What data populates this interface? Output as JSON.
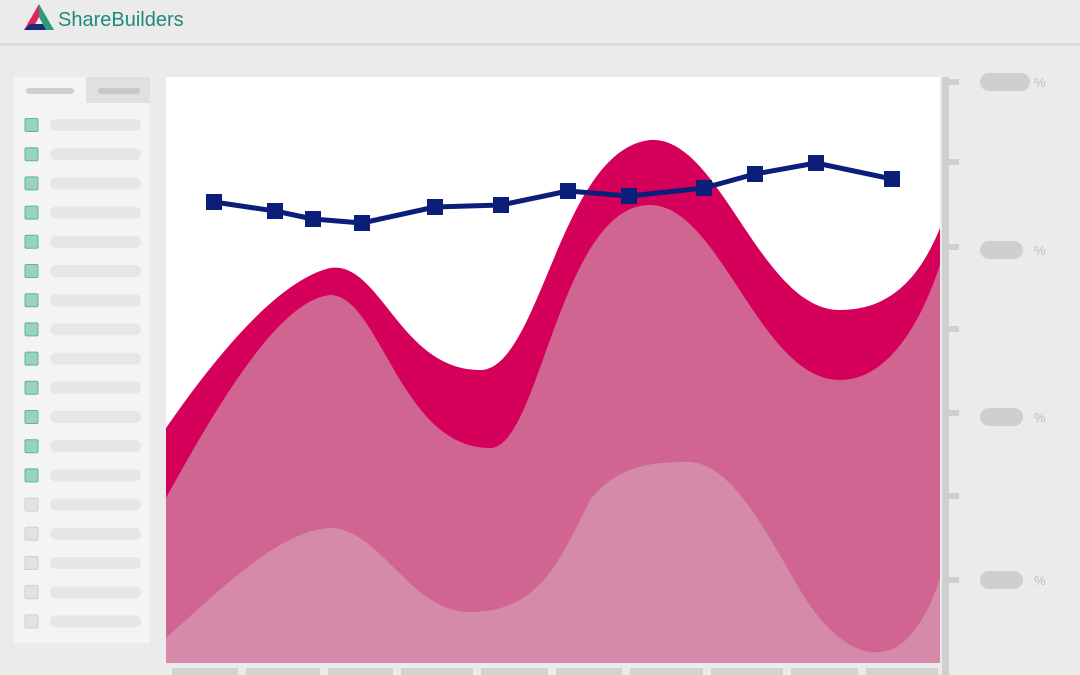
{
  "header": {
    "brand": "ShareBuilders"
  },
  "chart": {
    "axis_labels": [
      "%",
      "%",
      "%",
      "%"
    ]
  }
}
